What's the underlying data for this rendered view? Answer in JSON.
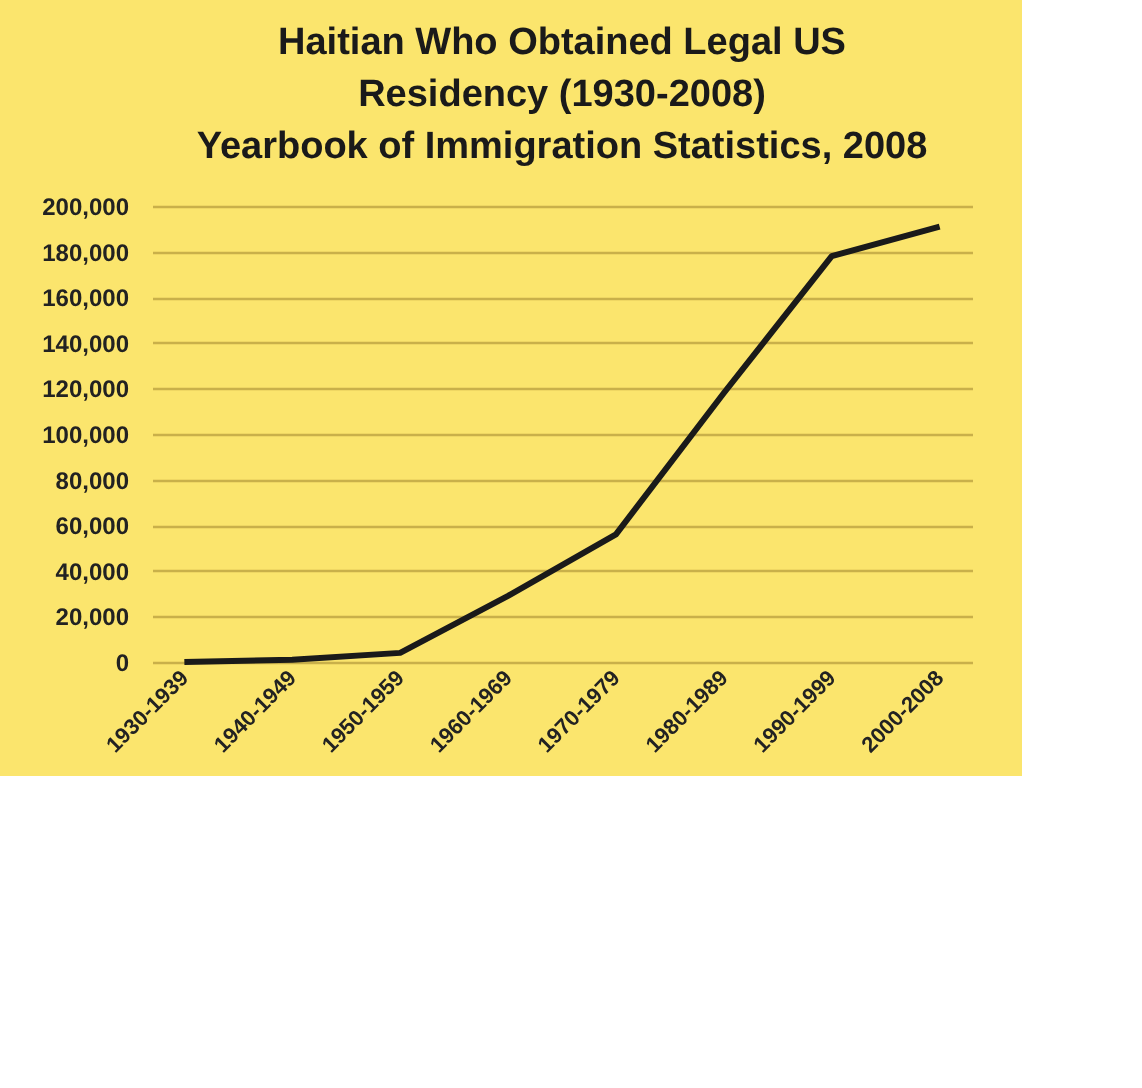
{
  "chart_data": {
    "type": "line",
    "title": "Haitian Who Obtained Legal US Residency (1930-2008)",
    "subtitle": "Yearbook of Immigration Statistics, 2008",
    "categories": [
      "1930-1939",
      "1940-1949",
      "1950-1959",
      "1960-1969",
      "1970-1979",
      "1980-1989",
      "1990-1999",
      "2000-2008"
    ],
    "series": [
      {
        "color": "#1a1a1a",
        "values": [
          0,
          1000,
          4000,
          29000,
          56000,
          118000,
          178000,
          191000
        ]
      }
    ],
    "ylim": [
      0,
      200000
    ],
    "yticks": [
      0,
      {
        "value": 20000,
        "label": "20,000"
      },
      {
        "value": 40000,
        "label": "40,000"
      },
      {
        "value": 60000,
        "label": "60,000"
      },
      {
        "value": 80000,
        "label": "80,000"
      },
      {
        "value": 100000,
        "label": "100,000"
      },
      {
        "value": 120000,
        "label": "120,000"
      },
      {
        "value": 140000,
        "label": "140,000"
      },
      {
        "value": 160000,
        "label": "160,000"
      },
      {
        "value": 180000,
        "label": "180,000"
      },
      {
        "value": 200000,
        "label": "200,000"
      }
    ],
    "grid": "y",
    "marker": "none",
    "line_style": "solid"
  }
}
